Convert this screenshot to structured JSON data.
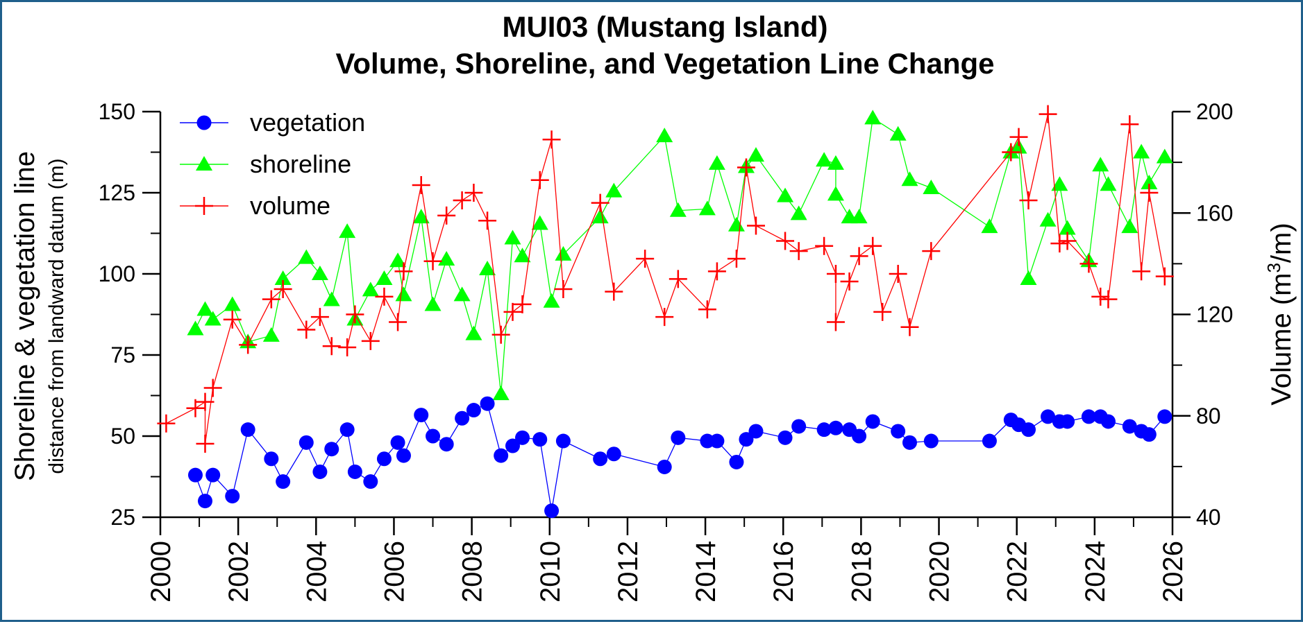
{
  "chart_data": {
    "type": "line",
    "title": "MUI03 (Mustang Island)",
    "subtitle": "Volume, Shoreline, and Vegetation Line Change",
    "ylabel_main": "Shoreline & vegetation line",
    "ylabel_sub": "distance from landward datum (m)",
    "y2label_prefix": "Volume (m",
    "y2label_sup": "3",
    "y2label_suffix": "/m)",
    "xlim": [
      2000,
      2026
    ],
    "ylim": [
      25,
      150
    ],
    "y2lim": [
      40,
      200
    ],
    "xticks": [
      "2000",
      "2002",
      "2004",
      "2006",
      "2008",
      "2010",
      "2012",
      "2014",
      "2016",
      "2018",
      "2020",
      "2022",
      "2024",
      "2026"
    ],
    "yticks": [
      "25",
      "50",
      "75",
      "100",
      "125",
      "150"
    ],
    "y2ticks": [
      "40",
      "80",
      "120",
      "160",
      "200"
    ],
    "legend_position": "top-left",
    "series": [
      {
        "name": "vegetation",
        "color": "#0000ff",
        "marker": "circle",
        "axis": "left",
        "points": [
          [
            2000.9,
            38
          ],
          [
            2001.15,
            30
          ],
          [
            2001.35,
            38
          ],
          [
            2001.85,
            31.5
          ],
          [
            2002.25,
            52
          ],
          [
            2002.85,
            43
          ],
          [
            2003.15,
            36
          ],
          [
            2003.75,
            48
          ],
          [
            2004.1,
            39
          ],
          [
            2004.4,
            46
          ],
          [
            2004.8,
            52
          ],
          [
            2005.0,
            39
          ],
          [
            2005.4,
            36
          ],
          [
            2005.75,
            43
          ],
          [
            2006.1,
            48
          ],
          [
            2006.25,
            44
          ],
          [
            2006.7,
            56.5
          ],
          [
            2007.0,
            50
          ],
          [
            2007.35,
            47.5
          ],
          [
            2007.75,
            55.5
          ],
          [
            2008.05,
            58
          ],
          [
            2008.4,
            60
          ],
          [
            2008.75,
            44
          ],
          [
            2009.05,
            47
          ],
          [
            2009.3,
            49.5
          ],
          [
            2009.75,
            49
          ],
          [
            2010.05,
            27
          ],
          [
            2010.35,
            48.5
          ],
          [
            2011.3,
            43
          ],
          [
            2011.65,
            44.5
          ],
          [
            2012.95,
            40.5
          ],
          [
            2013.3,
            49.5
          ],
          [
            2014.05,
            48.5
          ],
          [
            2014.3,
            48.5
          ],
          [
            2014.8,
            42
          ],
          [
            2015.05,
            49
          ],
          [
            2015.3,
            51.5
          ],
          [
            2016.05,
            49.5
          ],
          [
            2016.4,
            53
          ],
          [
            2017.05,
            52
          ],
          [
            2017.35,
            52.5
          ],
          [
            2017.7,
            52
          ],
          [
            2017.95,
            50
          ],
          [
            2018.3,
            54.5
          ],
          [
            2018.95,
            51.5
          ],
          [
            2019.25,
            48
          ],
          [
            2019.8,
            48.5
          ],
          [
            2021.3,
            48.5
          ],
          [
            2021.85,
            55
          ],
          [
            2022.05,
            53.5
          ],
          [
            2022.3,
            52
          ],
          [
            2022.8,
            56
          ],
          [
            2023.1,
            54.5
          ],
          [
            2023.3,
            54.5
          ],
          [
            2023.85,
            56
          ],
          [
            2024.15,
            56
          ],
          [
            2024.35,
            54.5
          ],
          [
            2024.9,
            53
          ],
          [
            2025.2,
            51.5
          ],
          [
            2025.4,
            50.5
          ],
          [
            2025.8,
            56
          ]
        ]
      },
      {
        "name": "shoreline",
        "color": "#00ff00",
        "marker": "triangle",
        "axis": "left",
        "points": [
          [
            2000.9,
            83
          ],
          [
            2001.15,
            89
          ],
          [
            2001.35,
            86
          ],
          [
            2001.85,
            90.5
          ],
          [
            2002.25,
            79
          ],
          [
            2002.85,
            81
          ],
          [
            2003.15,
            98.5
          ],
          [
            2003.75,
            105
          ],
          [
            2004.1,
            100
          ],
          [
            2004.4,
            92
          ],
          [
            2004.8,
            113
          ],
          [
            2005.0,
            86
          ],
          [
            2005.4,
            95
          ],
          [
            2005.75,
            98.5
          ],
          [
            2006.1,
            104
          ],
          [
            2006.25,
            93.5
          ],
          [
            2006.7,
            117.5
          ],
          [
            2007.0,
            90.5
          ],
          [
            2007.35,
            104.5
          ],
          [
            2007.75,
            93.5
          ],
          [
            2008.05,
            81.5
          ],
          [
            2008.4,
            101.5
          ],
          [
            2008.75,
            63
          ],
          [
            2009.05,
            111
          ],
          [
            2009.3,
            105.5
          ],
          [
            2009.75,
            115.5
          ],
          [
            2010.05,
            91.5
          ],
          [
            2010.35,
            106
          ],
          [
            2011.3,
            117.5
          ],
          [
            2011.65,
            125.5
          ],
          [
            2012.95,
            142.5
          ],
          [
            2013.3,
            119.5
          ],
          [
            2014.05,
            120
          ],
          [
            2014.3,
            134
          ],
          [
            2014.8,
            115
          ],
          [
            2015.05,
            133
          ],
          [
            2015.3,
            136.5
          ],
          [
            2016.05,
            124
          ],
          [
            2016.4,
            118.5
          ],
          [
            2017.05,
            135
          ],
          [
            2017.35,
            134
          ],
          [
            2017.35,
            124.5
          ],
          [
            2017.7,
            117.5
          ],
          [
            2017.95,
            117.5
          ],
          [
            2018.3,
            148
          ],
          [
            2018.95,
            143
          ],
          [
            2019.25,
            129
          ],
          [
            2019.8,
            126.5
          ],
          [
            2021.3,
            114.5
          ],
          [
            2021.85,
            137.5
          ],
          [
            2022.05,
            139
          ],
          [
            2022.3,
            98.5
          ],
          [
            2022.8,
            116.5
          ],
          [
            2023.1,
            127.5
          ],
          [
            2023.3,
            114
          ],
          [
            2023.85,
            104
          ],
          [
            2024.15,
            133.5
          ],
          [
            2024.35,
            127.5
          ],
          [
            2024.9,
            114.5
          ],
          [
            2025.2,
            137.5
          ],
          [
            2025.4,
            128
          ],
          [
            2025.8,
            136
          ]
        ]
      },
      {
        "name": "volume",
        "color": "#ff0000",
        "marker": "plus",
        "axis": "right",
        "points": [
          [
            2000.15,
            77
          ],
          [
            2000.9,
            83
          ],
          [
            2001.15,
            85.5
          ],
          [
            2001.15,
            69
          ],
          [
            2001.35,
            91
          ],
          [
            2001.85,
            118
          ],
          [
            2002.25,
            108
          ],
          [
            2002.85,
            126
          ],
          [
            2003.15,
            130
          ],
          [
            2003.75,
            114
          ],
          [
            2004.1,
            119
          ],
          [
            2004.4,
            107.5
          ],
          [
            2004.8,
            107
          ],
          [
            2005.0,
            120
          ],
          [
            2005.4,
            109.5
          ],
          [
            2005.75,
            127
          ],
          [
            2006.1,
            117
          ],
          [
            2006.25,
            137
          ],
          [
            2006.7,
            171
          ],
          [
            2007.0,
            141
          ],
          [
            2007.35,
            159
          ],
          [
            2007.75,
            165
          ],
          [
            2008.05,
            168
          ],
          [
            2008.4,
            157
          ],
          [
            2008.75,
            112
          ],
          [
            2009.05,
            121
          ],
          [
            2009.3,
            124
          ],
          [
            2009.75,
            173
          ],
          [
            2010.05,
            189
          ],
          [
            2010.35,
            130
          ],
          [
            2011.3,
            164
          ],
          [
            2011.65,
            129
          ],
          [
            2012.45,
            142
          ],
          [
            2012.95,
            119
          ],
          [
            2013.3,
            134
          ],
          [
            2014.05,
            122
          ],
          [
            2014.3,
            137
          ],
          [
            2014.8,
            142
          ],
          [
            2015.05,
            178
          ],
          [
            2015.3,
            155
          ],
          [
            2016.05,
            149
          ],
          [
            2016.4,
            145
          ],
          [
            2017.05,
            147
          ],
          [
            2017.35,
            136
          ],
          [
            2017.35,
            117
          ],
          [
            2017.7,
            133
          ],
          [
            2017.95,
            143
          ],
          [
            2018.3,
            147
          ],
          [
            2018.55,
            121
          ],
          [
            2018.95,
            136
          ],
          [
            2019.25,
            115
          ],
          [
            2019.8,
            145
          ],
          [
            2021.85,
            184
          ],
          [
            2022.05,
            190
          ],
          [
            2022.3,
            165
          ],
          [
            2022.8,
            199
          ],
          [
            2023.1,
            148
          ],
          [
            2023.3,
            149
          ],
          [
            2023.85,
            140
          ],
          [
            2024.15,
            127
          ],
          [
            2024.35,
            126
          ],
          [
            2024.9,
            195
          ],
          [
            2025.2,
            137
          ],
          [
            2025.4,
            168
          ],
          [
            2025.8,
            135
          ]
        ]
      }
    ]
  }
}
